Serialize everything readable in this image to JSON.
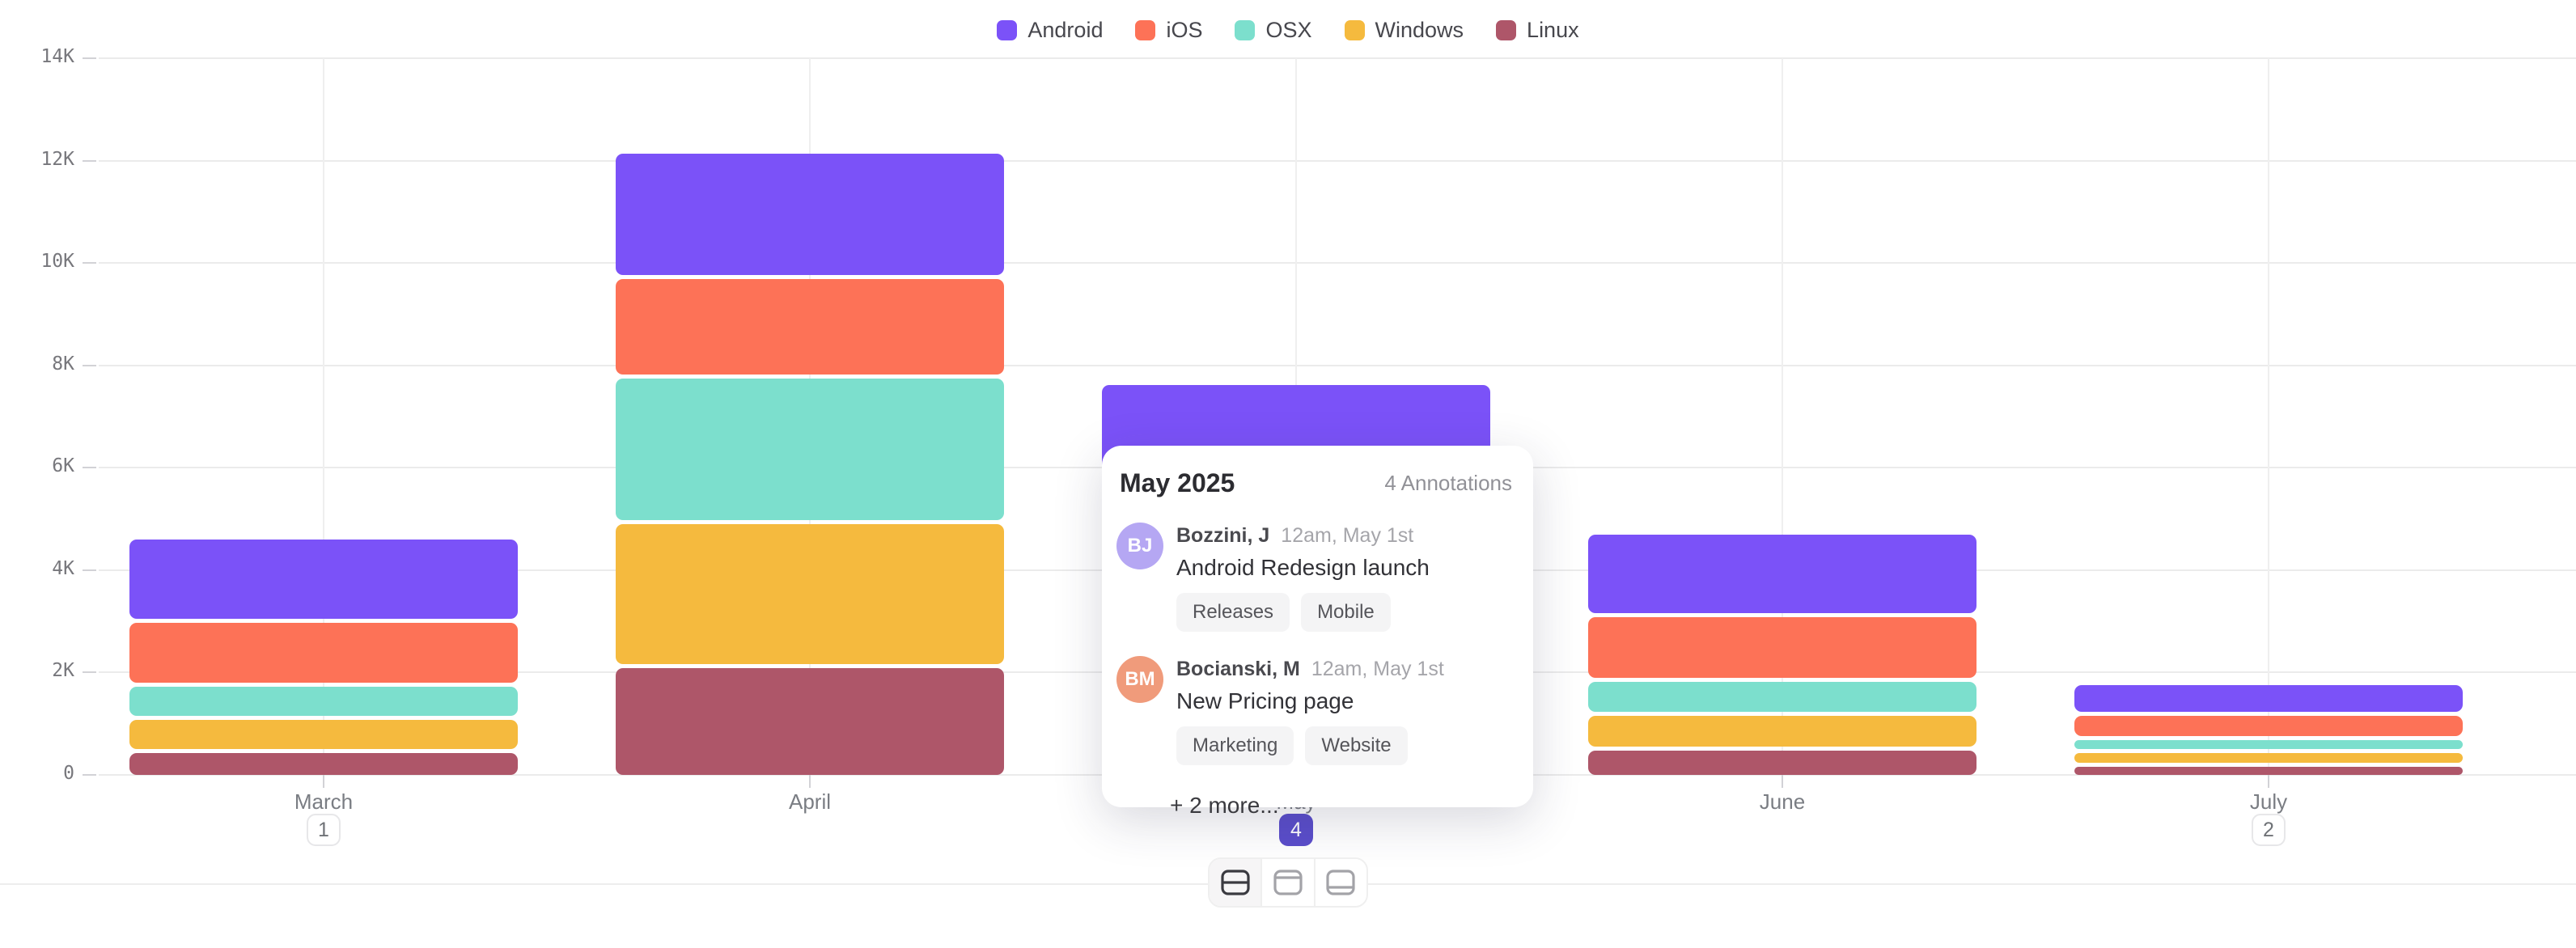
{
  "legend": {
    "items": [
      {
        "label": "Android",
        "color": "#7b52f8"
      },
      {
        "label": "iOS",
        "color": "#fd7257"
      },
      {
        "label": "OSX",
        "color": "#7cdfcd"
      },
      {
        "label": "Windows",
        "color": "#f5ba3e"
      },
      {
        "label": "Linux",
        "color": "#ae5669"
      }
    ]
  },
  "chart_data": {
    "type": "bar",
    "stacked": true,
    "title": "",
    "xlabel": "",
    "ylabel": "",
    "categories": [
      "March",
      "April",
      "May",
      "June",
      "July"
    ],
    "series": [
      {
        "name": "Android",
        "color": "#7b52f8",
        "values": [
          1550,
          2370,
          1900,
          1530,
          520
        ]
      },
      {
        "name": "iOS",
        "color": "#fd7257",
        "values": [
          1170,
          1860,
          1600,
          1190,
          395
        ]
      },
      {
        "name": "OSX",
        "color": "#7cdfcd",
        "values": [
          570,
          2760,
          1450,
          590,
          175
        ]
      },
      {
        "name": "Windows",
        "color": "#f5ba3e",
        "values": [
          570,
          2745,
          1350,
          600,
          190
        ]
      },
      {
        "name": "Linux",
        "color": "#ae5669",
        "values": [
          430,
          2080,
          1000,
          470,
          160
        ]
      }
    ],
    "ylim": [
      0,
      14000
    ],
    "yticks": [
      "0",
      "2K",
      "4K",
      "6K",
      "8K",
      "10K",
      "12K",
      "14K"
    ],
    "grid": true,
    "legend_position": "top",
    "annotation_counts": [
      {
        "category": "March",
        "count": "1",
        "active": false
      },
      {
        "category": "May",
        "count": "4",
        "active": true
      },
      {
        "category": "July",
        "count": "2",
        "active": false
      }
    ],
    "badge_active_color": "#5b4ecb"
  },
  "tooltip": {
    "title": "May 2025",
    "count_label": "4 Annotations",
    "items": [
      {
        "initials": "BJ",
        "avatar_color": "#b5a7f3",
        "author": "Bozzini, J",
        "timestamp": "12am, May 1st",
        "text": "Android Redesign launch",
        "tags": [
          "Releases",
          "Mobile"
        ]
      },
      {
        "initials": "BM",
        "avatar_color": "#f09b7b",
        "author": "Bocianski, M",
        "timestamp": "12am, May 1st",
        "text": "New Pricing page",
        "tags": [
          "Marketing",
          "Website"
        ]
      }
    ],
    "more_label": "+ 2 more..."
  },
  "toolbar": {
    "modes": [
      {
        "name": "split-horizontal",
        "active": true
      },
      {
        "name": "panel-top",
        "active": false
      },
      {
        "name": "panel-bottom",
        "active": false
      }
    ]
  }
}
